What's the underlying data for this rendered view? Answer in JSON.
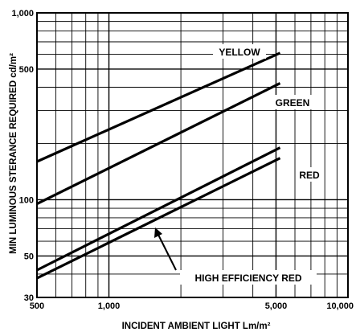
{
  "chart_data": {
    "type": "line",
    "xlabel": "INCIDENT AMBIENT LIGHT Lm/m²",
    "ylabel": "MIN LUMINOUS STERANCE REQUIRED cd/m²",
    "x_scale": "log",
    "y_scale": "log",
    "xlim": [
      500,
      10000
    ],
    "ylim": [
      30,
      1000
    ],
    "x_ticks": [
      500,
      1000,
      5000,
      10000
    ],
    "x_tick_labels": [
      "500",
      "1,000",
      "5,000",
      "10,000"
    ],
    "y_ticks": [
      30,
      50,
      100,
      500,
      1000
    ],
    "y_tick_labels": [
      "30",
      "50",
      "100",
      "500",
      "1,000"
    ],
    "grid": true,
    "series": [
      {
        "name": "YELLOW",
        "x": [
          500,
          5200
        ],
        "y": [
          160,
          610
        ]
      },
      {
        "name": "GREEN",
        "x": [
          500,
          5200
        ],
        "y": [
          95,
          420
        ]
      },
      {
        "name": "RED",
        "x": [
          500,
          5200
        ],
        "y": [
          42,
          190
        ]
      },
      {
        "name": "HIGH EFFICIENCY RED",
        "x": [
          500,
          5200
        ],
        "y": [
          38,
          167
        ]
      }
    ]
  }
}
